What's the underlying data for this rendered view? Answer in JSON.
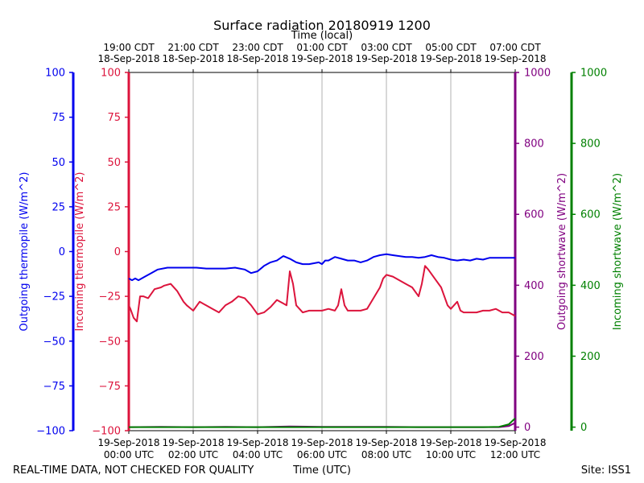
{
  "chart_data": {
    "type": "line",
    "title": "Surface radiation 20180919 1200",
    "top_axis": {
      "label": "Time (local)",
      "ticks": [
        {
          "x": 0,
          "line1": "19:00 CDT",
          "line2": "18-Sep-2018"
        },
        {
          "x": 2,
          "line1": "21:00 CDT",
          "line2": "18-Sep-2018"
        },
        {
          "x": 4,
          "line1": "23:00 CDT",
          "line2": "18-Sep-2018"
        },
        {
          "x": 6,
          "line1": "01:00 CDT",
          "line2": "19-Sep-2018"
        },
        {
          "x": 8,
          "line1": "03:00 CDT",
          "line2": "19-Sep-2018"
        },
        {
          "x": 10,
          "line1": "05:00 CDT",
          "line2": "19-Sep-2018"
        },
        {
          "x": 12,
          "line1": "07:00 CDT",
          "line2": "19-Sep-2018"
        }
      ]
    },
    "bottom_axis": {
      "label": "Time (UTC)",
      "ticks": [
        {
          "x": 0,
          "line1": "19-Sep-2018",
          "line2": "00:00 UTC"
        },
        {
          "x": 2,
          "line1": "19-Sep-2018",
          "line2": "02:00 UTC"
        },
        {
          "x": 4,
          "line1": "19-Sep-2018",
          "line2": "04:00 UTC"
        },
        {
          "x": 6,
          "line1": "19-Sep-2018",
          "line2": "06:00 UTC"
        },
        {
          "x": 8,
          "line1": "19-Sep-2018",
          "line2": "08:00 UTC"
        },
        {
          "x": 10,
          "line1": "19-Sep-2018",
          "line2": "10:00 UTC"
        },
        {
          "x": 12,
          "line1": "19-Sep-2018",
          "line2": "12:00 UTC"
        }
      ]
    },
    "xlim": [
      0,
      12
    ],
    "grid_x": [
      2,
      4,
      6,
      8,
      10
    ],
    "y_axes": [
      {
        "id": "out_thermo",
        "label": "Outgoing thermopile (W/m^2)",
        "color": "#0000ee",
        "ylim": [
          -100,
          100
        ],
        "ticks": [
          -100,
          -75,
          -50,
          -25,
          0,
          25,
          50,
          75,
          100
        ]
      },
      {
        "id": "in_thermo",
        "label": "Incoming thermopile (W/m^2)",
        "color": "#dc143c",
        "ylim": [
          -100,
          100
        ],
        "ticks": [
          -100,
          -75,
          -50,
          -25,
          0,
          25,
          50,
          75,
          100
        ]
      },
      {
        "id": "out_sw",
        "label": "Outgoing shortwave (W/m^2)",
        "color": "#800080",
        "ylim": [
          -10,
          1000
        ],
        "ticks": [
          0,
          200,
          400,
          600,
          800,
          1000
        ]
      },
      {
        "id": "in_sw",
        "label": "Incoming shortwave (W/m^2)",
        "color": "#008000",
        "ylim": [
          -10,
          1000
        ],
        "ticks": [
          0,
          200,
          400,
          600,
          800,
          1000
        ]
      }
    ],
    "series": [
      {
        "name": "Outgoing thermopile",
        "axis": "out_thermo",
        "color": "#0000ee",
        "x": [
          0,
          0.1,
          0.2,
          0.3,
          0.5,
          0.7,
          0.9,
          1.2,
          1.5,
          1.8,
          2.1,
          2.4,
          2.7,
          3.0,
          3.3,
          3.6,
          3.8,
          4.0,
          4.2,
          4.4,
          4.6,
          4.8,
          5.0,
          5.2,
          5.4,
          5.6,
          5.9,
          6.0,
          6.1,
          6.2,
          6.4,
          6.6,
          6.8,
          7.0,
          7.2,
          7.4,
          7.6,
          7.8,
          8.0,
          8.2,
          8.4,
          8.6,
          8.8,
          9.0,
          9.2,
          9.4,
          9.6,
          9.8,
          10.0,
          10.2,
          10.4,
          10.6,
          10.8,
          11.0,
          11.2,
          11.4,
          11.6,
          11.8,
          12.0
        ],
        "y": [
          -15,
          -16,
          -15,
          -16,
          -14,
          -12,
          -10,
          -9,
          -9,
          -9,
          -9,
          -9.5,
          -9.5,
          -9.5,
          -9,
          -10,
          -12,
          -11,
          -8,
          -6,
          -5,
          -2.5,
          -4,
          -6,
          -7,
          -7,
          -6,
          -7,
          -5,
          -5,
          -3,
          -4,
          -5,
          -5,
          -6,
          -5,
          -3,
          -2,
          -1.5,
          -2,
          -2.5,
          -3,
          -3,
          -3.5,
          -3,
          -2,
          -3,
          -3.5,
          -4.5,
          -5,
          -4.5,
          -5,
          -4,
          -4.5,
          -3.5,
          -3.5,
          -3.5,
          -3.5,
          -3.5
        ]
      },
      {
        "name": "Incoming thermopile",
        "axis": "in_thermo",
        "color": "#dc143c",
        "x": [
          0,
          0.05,
          0.15,
          0.25,
          0.35,
          0.45,
          0.6,
          0.8,
          1.0,
          1.1,
          1.3,
          1.5,
          1.7,
          1.8,
          2.0,
          2.2,
          2.4,
          2.6,
          2.8,
          3.0,
          3.2,
          3.4,
          3.6,
          3.8,
          4.0,
          4.2,
          4.4,
          4.6,
          4.8,
          4.9,
          5.0,
          5.1,
          5.2,
          5.4,
          5.6,
          5.8,
          6.0,
          6.2,
          6.4,
          6.5,
          6.6,
          6.7,
          6.8,
          7.0,
          7.2,
          7.4,
          7.6,
          7.8,
          7.9,
          8.0,
          8.2,
          8.4,
          8.6,
          8.8,
          9.0,
          9.1,
          9.2,
          9.3,
          9.5,
          9.7,
          9.9,
          10.0,
          10.2,
          10.3,
          10.4,
          10.6,
          10.8,
          11.0,
          11.2,
          11.4,
          11.6,
          11.8,
          12.0
        ],
        "y": [
          -30,
          -32,
          -37,
          -39,
          -25,
          -25,
          -26,
          -21,
          -20,
          -19,
          -18,
          -22,
          -28,
          -30,
          -33,
          -28,
          -30,
          -32,
          -34,
          -30,
          -28,
          -25,
          -26,
          -30,
          -35,
          -34,
          -31,
          -27,
          -29,
          -30,
          -11,
          -18,
          -30,
          -34,
          -33,
          -33,
          -33,
          -32,
          -33,
          -30,
          -21,
          -30,
          -33,
          -33,
          -33,
          -32,
          -26,
          -20,
          -15,
          -13,
          -14,
          -16,
          -18,
          -20,
          -25,
          -18,
          -8,
          -10,
          -15,
          -20,
          -30,
          -32,
          -28,
          -33,
          -34,
          -34,
          -34,
          -33,
          -33,
          -32,
          -34,
          -34,
          -36
        ]
      },
      {
        "name": "Outgoing shortwave",
        "axis": "out_sw",
        "color": "#800080",
        "x": [
          0,
          1,
          2,
          3,
          4,
          5,
          6,
          7,
          8,
          9,
          10,
          11,
          11.5,
          11.8,
          12.0
        ],
        "y": [
          0,
          1,
          0,
          1,
          0,
          2,
          1,
          1,
          1,
          0,
          0,
          0,
          0,
          3,
          12
        ]
      },
      {
        "name": "Incoming shortwave",
        "axis": "in_sw",
        "color": "#008000",
        "x": [
          0,
          2,
          4,
          6,
          8,
          10,
          11,
          11.5,
          11.8,
          12.0
        ],
        "y": [
          0,
          0,
          0,
          0,
          0,
          0,
          0,
          1,
          8,
          25
        ]
      }
    ],
    "footer_left": "REAL-TIME DATA, NOT CHECKED FOR QUALITY",
    "footer_right": "Site: ISS1"
  }
}
